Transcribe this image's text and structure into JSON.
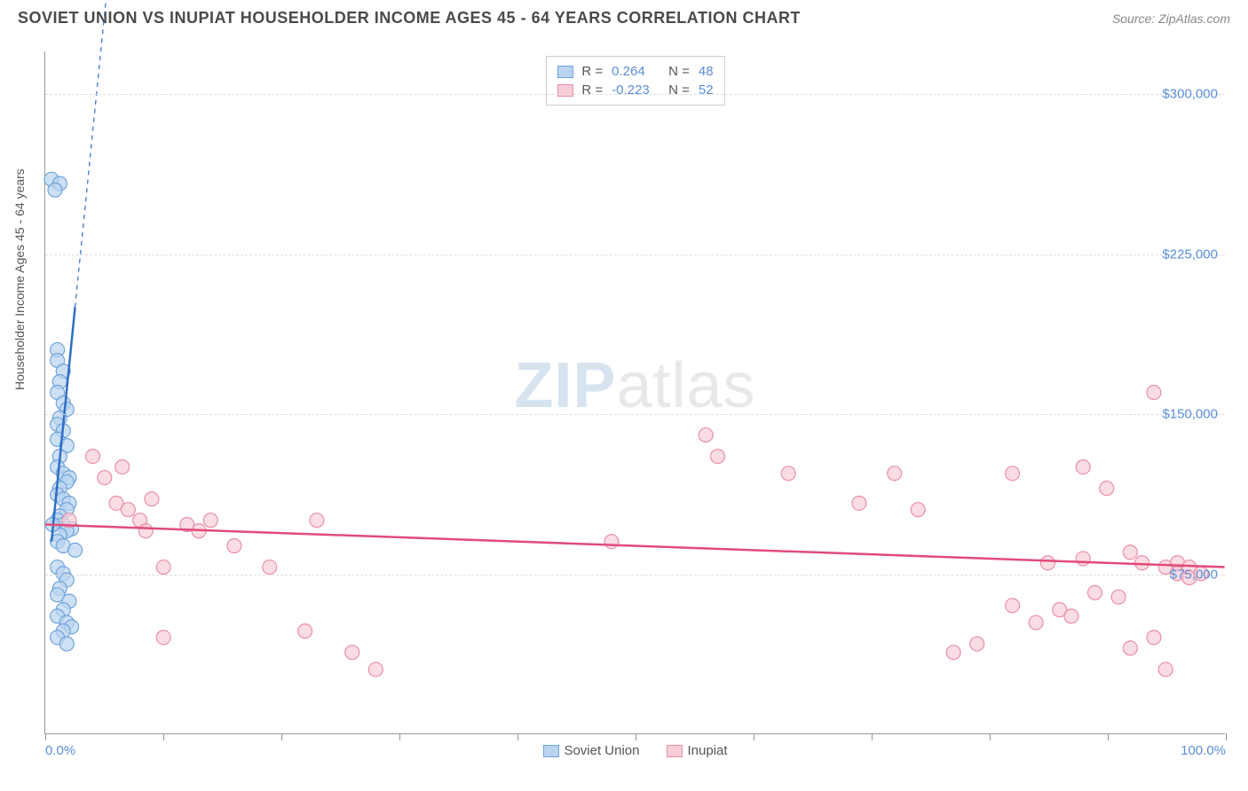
{
  "title": "SOVIET UNION VS INUPIAT HOUSEHOLDER INCOME AGES 45 - 64 YEARS CORRELATION CHART",
  "source": "Source: ZipAtlas.com",
  "watermark_zip": "ZIP",
  "watermark_atlas": "atlas",
  "y_axis": {
    "label": "Householder Income Ages 45 - 64 years",
    "ticks": [
      {
        "value": 75000,
        "label": "$75,000"
      },
      {
        "value": 150000,
        "label": "$150,000"
      },
      {
        "value": 225000,
        "label": "$225,000"
      },
      {
        "value": 300000,
        "label": "$300,000"
      }
    ],
    "min": 0,
    "max": 320000
  },
  "x_axis": {
    "min": 0,
    "max": 100,
    "ticks": [
      0,
      10,
      20,
      30,
      40,
      50,
      60,
      70,
      80,
      90,
      100
    ],
    "labels": [
      {
        "value": 0,
        "label": "0.0%"
      },
      {
        "value": 100,
        "label": "100.0%"
      }
    ]
  },
  "series": [
    {
      "name": "Soviet Union",
      "color_fill": "#b9d4f0",
      "color_stroke": "#6fa3db",
      "line_color": "#2e6fc4",
      "r_value": "0.264",
      "n_value": "48",
      "trend": {
        "x1": 0.5,
        "y1": 90000,
        "x2": 2.5,
        "y2": 200000
      },
      "trend_dash": {
        "x1": 2.5,
        "y1": 200000,
        "x2": 5.5,
        "y2": 365000
      },
      "points": [
        {
          "x": 0.5,
          "y": 260000
        },
        {
          "x": 1.2,
          "y": 258000
        },
        {
          "x": 0.8,
          "y": 255000
        },
        {
          "x": 1.0,
          "y": 180000
        },
        {
          "x": 1.0,
          "y": 175000
        },
        {
          "x": 1.5,
          "y": 170000
        },
        {
          "x": 1.2,
          "y": 165000
        },
        {
          "x": 1.0,
          "y": 160000
        },
        {
          "x": 1.5,
          "y": 155000
        },
        {
          "x": 1.8,
          "y": 152000
        },
        {
          "x": 1.2,
          "y": 148000
        },
        {
          "x": 1.0,
          "y": 145000
        },
        {
          "x": 1.5,
          "y": 142000
        },
        {
          "x": 1.0,
          "y": 138000
        },
        {
          "x": 1.8,
          "y": 135000
        },
        {
          "x": 1.2,
          "y": 130000
        },
        {
          "x": 1.0,
          "y": 125000
        },
        {
          "x": 1.5,
          "y": 122000
        },
        {
          "x": 2.0,
          "y": 120000
        },
        {
          "x": 1.8,
          "y": 118000
        },
        {
          "x": 1.2,
          "y": 115000
        },
        {
          "x": 1.0,
          "y": 112000
        },
        {
          "x": 1.5,
          "y": 110000
        },
        {
          "x": 2.0,
          "y": 108000
        },
        {
          "x": 1.8,
          "y": 105000
        },
        {
          "x": 1.2,
          "y": 102000
        },
        {
          "x": 1.0,
          "y": 100000
        },
        {
          "x": 1.5,
          "y": 98000
        },
        {
          "x": 2.2,
          "y": 96000
        },
        {
          "x": 1.8,
          "y": 95000
        },
        {
          "x": 1.2,
          "y": 93000
        },
        {
          "x": 1.0,
          "y": 90000
        },
        {
          "x": 1.5,
          "y": 88000
        },
        {
          "x": 2.5,
          "y": 86000
        },
        {
          "x": 1.0,
          "y": 78000
        },
        {
          "x": 1.5,
          "y": 75000
        },
        {
          "x": 1.8,
          "y": 72000
        },
        {
          "x": 1.2,
          "y": 68000
        },
        {
          "x": 1.0,
          "y": 65000
        },
        {
          "x": 2.0,
          "y": 62000
        },
        {
          "x": 1.5,
          "y": 58000
        },
        {
          "x": 1.0,
          "y": 55000
        },
        {
          "x": 1.8,
          "y": 52000
        },
        {
          "x": 2.2,
          "y": 50000
        },
        {
          "x": 1.5,
          "y": 48000
        },
        {
          "x": 1.0,
          "y": 45000
        },
        {
          "x": 1.8,
          "y": 42000
        },
        {
          "x": 0.6,
          "y": 98000
        }
      ]
    },
    {
      "name": "Inupiat",
      "color_fill": "#f8cdd8",
      "color_stroke": "#e88fa8",
      "line_color": "#e14b7a",
      "r_value": "-0.223",
      "n_value": "52",
      "trend": {
        "x1": 0,
        "y1": 98000,
        "x2": 100,
        "y2": 78000
      },
      "points": [
        {
          "x": 2,
          "y": 100000
        },
        {
          "x": 4,
          "y": 130000
        },
        {
          "x": 5,
          "y": 120000
        },
        {
          "x": 6,
          "y": 108000
        },
        {
          "x": 6.5,
          "y": 125000
        },
        {
          "x": 7,
          "y": 105000
        },
        {
          "x": 8,
          "y": 100000
        },
        {
          "x": 8.5,
          "y": 95000
        },
        {
          "x": 9,
          "y": 110000
        },
        {
          "x": 10,
          "y": 78000
        },
        {
          "x": 10,
          "y": 45000
        },
        {
          "x": 12,
          "y": 98000
        },
        {
          "x": 13,
          "y": 95000
        },
        {
          "x": 14,
          "y": 100000
        },
        {
          "x": 16,
          "y": 88000
        },
        {
          "x": 19,
          "y": 78000
        },
        {
          "x": 22,
          "y": 48000
        },
        {
          "x": 23,
          "y": 100000
        },
        {
          "x": 26,
          "y": 38000
        },
        {
          "x": 28,
          "y": 30000
        },
        {
          "x": 48,
          "y": 90000
        },
        {
          "x": 56,
          "y": 140000
        },
        {
          "x": 57,
          "y": 130000
        },
        {
          "x": 63,
          "y": 122000
        },
        {
          "x": 69,
          "y": 108000
        },
        {
          "x": 72,
          "y": 122000
        },
        {
          "x": 74,
          "y": 105000
        },
        {
          "x": 77,
          "y": 38000
        },
        {
          "x": 79,
          "y": 42000
        },
        {
          "x": 82,
          "y": 122000
        },
        {
          "x": 82,
          "y": 60000
        },
        {
          "x": 84,
          "y": 52000
        },
        {
          "x": 85,
          "y": 80000
        },
        {
          "x": 86,
          "y": 58000
        },
        {
          "x": 87,
          "y": 55000
        },
        {
          "x": 88,
          "y": 125000
        },
        {
          "x": 88,
          "y": 82000
        },
        {
          "x": 89,
          "y": 66000
        },
        {
          "x": 90,
          "y": 115000
        },
        {
          "x": 91,
          "y": 64000
        },
        {
          "x": 92,
          "y": 85000
        },
        {
          "x": 92,
          "y": 40000
        },
        {
          "x": 93,
          "y": 80000
        },
        {
          "x": 94,
          "y": 160000
        },
        {
          "x": 94,
          "y": 45000
        },
        {
          "x": 95,
          "y": 78000
        },
        {
          "x": 95,
          "y": 30000
        },
        {
          "x": 96,
          "y": 80000
        },
        {
          "x": 96,
          "y": 75000
        },
        {
          "x": 97,
          "y": 78000
        },
        {
          "x": 97,
          "y": 73000
        },
        {
          "x": 98,
          "y": 75000
        }
      ]
    }
  ],
  "legend_labels": {
    "r": "R =",
    "n": "N ="
  },
  "marker_radius": 8,
  "marker_opacity": 0.7
}
